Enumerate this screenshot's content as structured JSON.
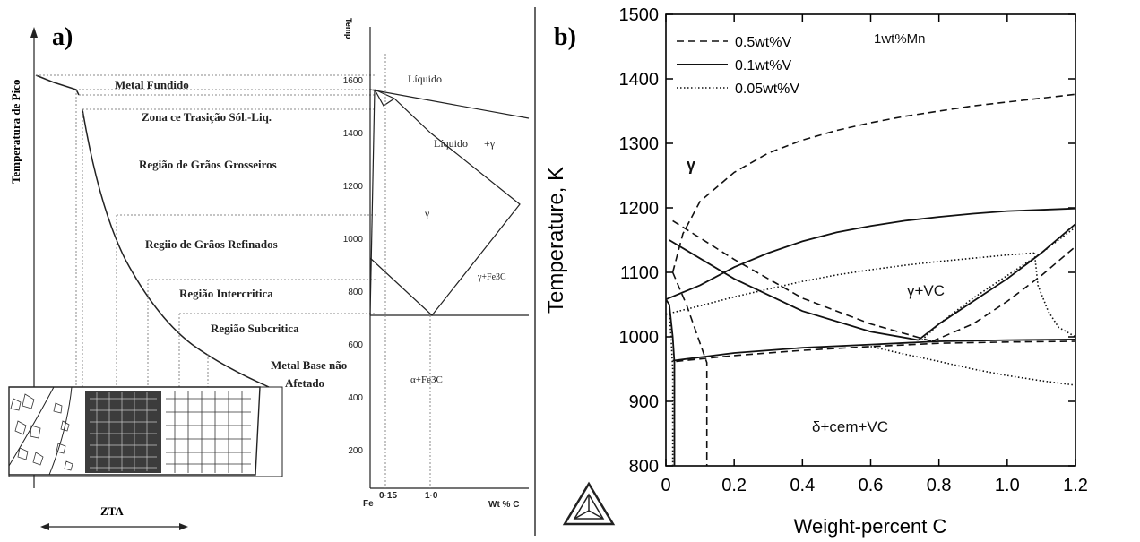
{
  "panel_a": {
    "label": "a)",
    "y_axis_label": "Temperatura de Pico",
    "zta_label": "ZTA",
    "regions": [
      "Metal Fundido",
      "Zona ce Trasição Sól.-Liq.",
      "Região de Grãos Grosseiros",
      "Regiio de Grãos Refinados",
      "Região Intercritica",
      "Região Subcritica",
      "Metal Base não",
      "Afetado"
    ],
    "phase_diagram": {
      "y_axis_title": "Temp",
      "y_ticks": [
        "1600",
        "1400",
        "1200",
        "1000",
        "800",
        "600",
        "400",
        "200"
      ],
      "x_ticks": [
        "Fe",
        "0·15",
        "1·0"
      ],
      "x_axis_title": "Wt % C",
      "fields": [
        "Líquido",
        "Líquido",
        "+γ",
        "γ",
        "γ+Fe3C",
        "α+Fe3C"
      ]
    }
  },
  "chart_data": [
    {
      "type": "line",
      "panel": "b)",
      "xlabel": "Weight-percent C",
      "ylabel": "Temperature, K",
      "xlim": [
        0,
        1.2
      ],
      "ylim": [
        800,
        1500
      ],
      "x_ticks": [
        "0",
        "0.2",
        "0.4",
        "0.6",
        "0.8",
        "1.0",
        "1.2"
      ],
      "y_ticks": [
        "800",
        "900",
        "1000",
        "1100",
        "1200",
        "1300",
        "1400",
        "1500"
      ],
      "legend_position": "top-left",
      "annotations": [
        "1wt%Mn",
        "γ",
        "γ+VC",
        "δ+cem+VC"
      ],
      "series": [
        {
          "name": "0.5wt%V",
          "style": "dashed",
          "curves": [
            {
              "x": [
                0.02,
                0.05,
                0.1,
                0.2,
                0.3,
                0.4,
                0.5,
                0.6,
                0.7,
                0.8,
                0.9,
                1.0,
                1.1,
                1.2
              ],
              "y": [
                1100,
                1160,
                1210,
                1255,
                1285,
                1305,
                1320,
                1332,
                1342,
                1350,
                1358,
                1364,
                1370,
                1376
              ]
            },
            {
              "x": [
                0.02,
                0.04,
                0.06,
                0.08,
                0.1,
                0.12,
                0.12
              ],
              "y": [
                1100,
                1075,
                1050,
                1020,
                990,
                960,
                800
              ]
            },
            {
              "x": [
                0.02,
                0.2,
                0.4,
                0.6,
                0.78
              ],
              "y": [
                1180,
                1120,
                1060,
                1020,
                993
              ]
            },
            {
              "x": [
                0.78,
                0.9,
                1.0,
                1.1,
                1.2
              ],
              "y": [
                993,
                1020,
                1055,
                1095,
                1140
              ]
            },
            {
              "x": [
                0.03,
                0.2,
                0.4,
                0.6,
                0.8,
                1.0,
                1.2
              ],
              "y": [
                962,
                971,
                979,
                985,
                990,
                992,
                993
              ]
            }
          ]
        },
        {
          "name": "0.1wt%V",
          "style": "solid",
          "curves": [
            {
              "x": [
                0.0,
                0.1,
                0.2,
                0.3,
                0.4,
                0.5,
                0.6,
                0.7,
                0.8,
                0.9,
                1.0,
                1.1,
                1.2
              ],
              "y": [
                1058,
                1080,
                1108,
                1130,
                1148,
                1162,
                1172,
                1180,
                1186,
                1191,
                1195,
                1197,
                1199
              ]
            },
            {
              "x": [
                0.01,
                0.2,
                0.4,
                0.6,
                0.74
              ],
              "y": [
                1150,
                1090,
                1040,
                1008,
                995
              ]
            },
            {
              "x": [
                0.74,
                0.8,
                0.9,
                1.0,
                1.1,
                1.2
              ],
              "y": [
                995,
                1020,
                1055,
                1090,
                1130,
                1175
              ]
            },
            {
              "x": [
                0.02,
                0.2,
                0.4,
                0.6,
                0.8,
                1.0,
                1.2
              ],
              "y": [
                963,
                975,
                983,
                988,
                993,
                995,
                996
              ]
            },
            {
              "x": [
                0.0,
                0.01,
                0.02,
                0.025,
                0.025
              ],
              "y": [
                1058,
                1050,
                1000,
                960,
                800
              ]
            }
          ]
        },
        {
          "name": "0.05wt%V",
          "style": "dotted",
          "curves": [
            {
              "x": [
                0.0,
                0.1,
                0.2,
                0.3,
                0.4,
                0.5,
                0.6,
                0.7,
                0.8,
                0.9,
                1.0,
                1.08
              ],
              "y": [
                1035,
                1048,
                1062,
                1074,
                1086,
                1096,
                1104,
                1111,
                1117,
                1122,
                1127,
                1130
              ]
            },
            {
              "x": [
                1.08,
                1.09,
                1.12,
                1.15,
                1.2
              ],
              "y": [
                1130,
                1080,
                1040,
                1015,
                1000
              ]
            },
            {
              "x": [
                0.75,
                0.8,
                0.9,
                1.0,
                1.1,
                1.2
              ],
              "y": [
                995,
                1020,
                1060,
                1095,
                1130,
                1170
              ]
            },
            {
              "x": [
                0.6,
                0.7,
                0.8,
                0.9,
                1.0,
                1.1,
                1.2
              ],
              "y": [
                985,
                973,
                962,
                950,
                940,
                932,
                925
              ]
            },
            {
              "x": [
                0.01,
                0.015,
                0.02,
                0.02
              ],
              "y": [
                1035,
                1000,
                950,
                800
              ]
            }
          ]
        }
      ]
    }
  ]
}
